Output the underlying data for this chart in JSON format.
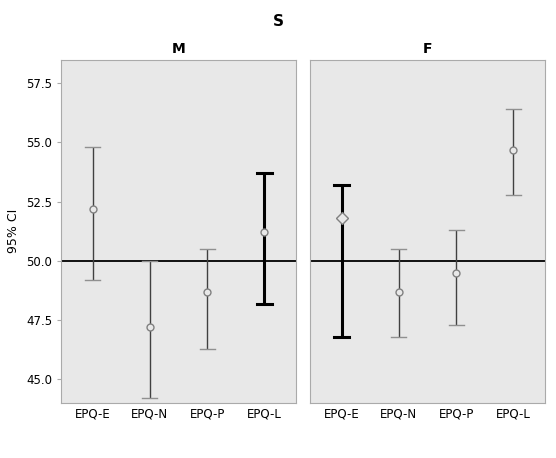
{
  "title": "S",
  "panel_M_title": "M",
  "panel_F_title": "F",
  "ylabel": "95% CI",
  "categories": [
    "EPQ-E",
    "EPQ-N",
    "EPQ-P",
    "EPQ-L"
  ],
  "M_means": [
    52.2,
    47.2,
    48.7,
    51.2
  ],
  "M_upper": [
    54.8,
    50.0,
    50.5,
    53.7
  ],
  "M_lower": [
    49.2,
    44.2,
    46.3,
    48.2
  ],
  "M_bold": [
    false,
    false,
    false,
    true
  ],
  "F_means": [
    51.8,
    48.7,
    49.5,
    54.7
  ],
  "F_upper": [
    53.2,
    50.5,
    51.3,
    56.4
  ],
  "F_lower": [
    46.8,
    46.8,
    47.3,
    52.8
  ],
  "F_bold": [
    true,
    false,
    false,
    false
  ],
  "F_diamond": [
    true,
    false,
    false,
    false
  ],
  "hline_y": 50.0,
  "ylim": [
    44.0,
    58.5
  ],
  "yticks": [
    45.0,
    47.5,
    50.0,
    52.5,
    55.0,
    57.5
  ],
  "background_color": "#e8e8e8",
  "line_color_dark": "#404040",
  "line_color_light": "#909090",
  "bold_line_color": "#000000",
  "marker_facecolor": "#e8e8e8",
  "marker_edgecolor": "#808080",
  "hline_color": "#000000",
  "title_fontsize": 11,
  "panel_title_fontsize": 10,
  "tick_fontsize": 8.5,
  "ylabel_fontsize": 9
}
